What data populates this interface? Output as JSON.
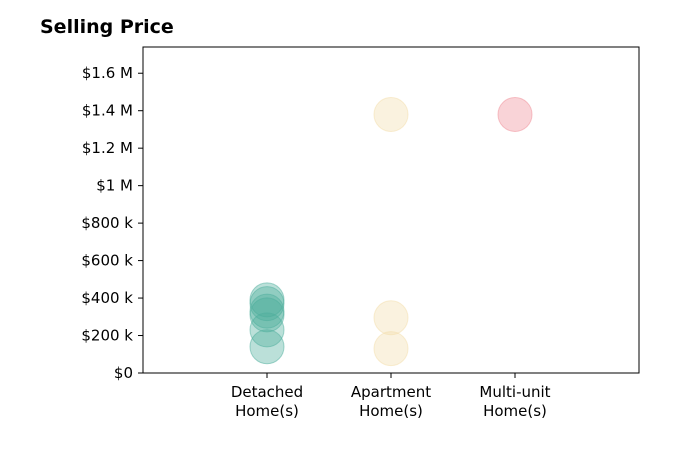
{
  "chart_data": {
    "type": "scatter",
    "title": "Selling Price",
    "xlabel": "",
    "ylabel": "",
    "categories": [
      [
        "Detached",
        "Home(s)"
      ],
      [
        "Apartment",
        "Home(s)"
      ],
      [
        "Multi-unit",
        "Home(s)"
      ]
    ],
    "y_ticks": [
      {
        "value": 0,
        "label": "$0"
      },
      {
        "value": 200000,
        "label": "$200 k"
      },
      {
        "value": 400000,
        "label": "$400 k"
      },
      {
        "value": 600000,
        "label": "$600 k"
      },
      {
        "value": 800000,
        "label": "$800 k"
      },
      {
        "value": 1000000,
        "label": "$1 M"
      },
      {
        "value": 1200000,
        "label": "$1.2 M"
      },
      {
        "value": 1400000,
        "label": "$1.4 M"
      },
      {
        "value": 1600000,
        "label": "$1.6 M"
      }
    ],
    "ylim": [
      0,
      1740000
    ],
    "grid": false,
    "series": [
      {
        "category": 0,
        "color": "#4cae9c",
        "values": [
          140000,
          230000,
          310000,
          330000,
          370000,
          390000
        ]
      },
      {
        "category": 1,
        "color": "#f3ddaa",
        "values": [
          130000,
          295000,
          1380000
        ]
      },
      {
        "category": 2,
        "color": "#f08b96",
        "values": [
          1380000
        ]
      }
    ]
  }
}
